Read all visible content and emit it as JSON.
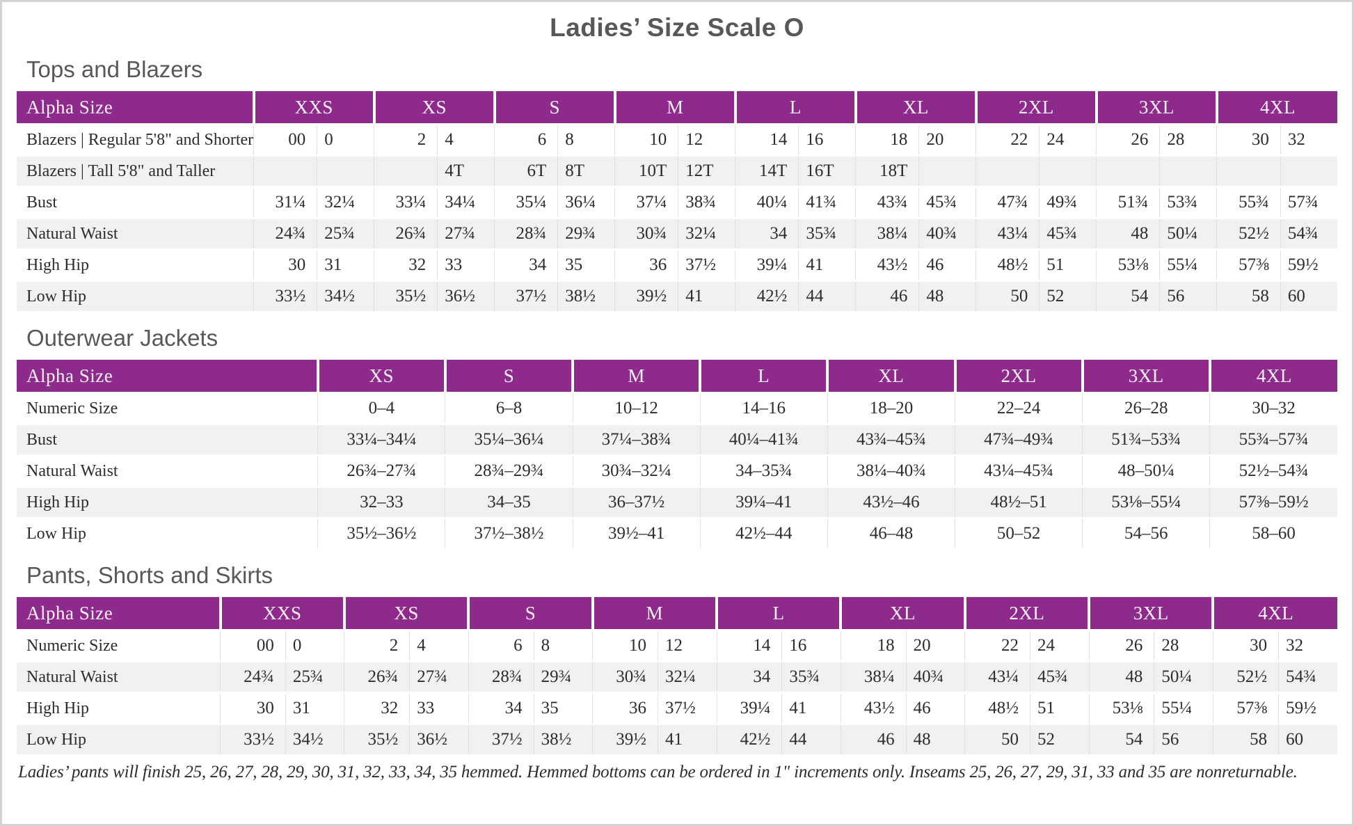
{
  "page_title": "Ladies’ Size Scale O",
  "colors": {
    "header_purple": "#8e2a8c",
    "row_stripe": "#f2f1ef",
    "heading_gray": "#58585a"
  },
  "sections": [
    {
      "heading": "Tops and Blazers",
      "layout": "paired",
      "corner_label": "Alpha Size",
      "columns": [
        "XXS",
        "XS",
        "S",
        "M",
        "L",
        "XL",
        "2XL",
        "3XL",
        "4XL"
      ],
      "rows": [
        {
          "label": "Blazers | Regular 5'8\" and Shorter",
          "cells": [
            "00",
            "0",
            "2",
            "4",
            "6",
            "8",
            "10",
            "12",
            "14",
            "16",
            "18",
            "20",
            "22",
            "24",
            "26",
            "28",
            "30",
            "32"
          ]
        },
        {
          "label": "Blazers | Tall 5'8\" and Taller",
          "cells": [
            "",
            "",
            "",
            "4T",
            "6T",
            "8T",
            "10T",
            "12T",
            "14T",
            "16T",
            "18T",
            "",
            "",
            "",
            "",
            "",
            "",
            ""
          ]
        },
        {
          "label": "Bust",
          "cells": [
            "31¼",
            "32¼",
            "33¼",
            "34¼",
            "35¼",
            "36¼",
            "37¼",
            "38¾",
            "40¼",
            "41¾",
            "43¾",
            "45¾",
            "47¾",
            "49¾",
            "51¾",
            "53¾",
            "55¾",
            "57¾"
          ]
        },
        {
          "label": "Natural Waist",
          "cells": [
            "24¾",
            "25¾",
            "26¾",
            "27¾",
            "28¾",
            "29¾",
            "30¾",
            "32¼",
            "34",
            "35¾",
            "38¼",
            "40¾",
            "43¼",
            "45¾",
            "48",
            "50¼",
            "52½",
            "54¾"
          ]
        },
        {
          "label": "High Hip",
          "cells": [
            "30",
            "31",
            "32",
            "33",
            "34",
            "35",
            "36",
            "37½",
            "39¼",
            "41",
            "43½",
            "46",
            "48½",
            "51",
            "53⅛",
            "55¼",
            "57⅜",
            "59½"
          ]
        },
        {
          "label": "Low Hip",
          "cells": [
            "33½",
            "34½",
            "35½",
            "36½",
            "37½",
            "38½",
            "39½",
            "41",
            "42½",
            "44",
            "46",
            "48",
            "50",
            "52",
            "54",
            "56",
            "58",
            "60"
          ]
        }
      ]
    },
    {
      "heading": "Outerwear Jackets",
      "layout": "single",
      "corner_label": "Alpha Size",
      "columns": [
        "XS",
        "S",
        "M",
        "L",
        "XL",
        "2XL",
        "3XL",
        "4XL"
      ],
      "rows": [
        {
          "label": "Numeric Size",
          "cells": [
            "0–4",
            "6–8",
            "10–12",
            "14–16",
            "18–20",
            "22–24",
            "26–28",
            "30–32"
          ]
        },
        {
          "label": "Bust",
          "cells": [
            "33¼–34¼",
            "35¼–36¼",
            "37¼–38¾",
            "40¼–41¾",
            "43¾–45¾",
            "47¾–49¾",
            "51¾–53¾",
            "55¾–57¾"
          ]
        },
        {
          "label": "Natural Waist",
          "cells": [
            "26¾–27¾",
            "28¾–29¾",
            "30¾–32¼",
            "34–35¾",
            "38¼–40¾",
            "43¼–45¾",
            "48–50¼",
            "52½–54¾"
          ]
        },
        {
          "label": "High Hip",
          "cells": [
            "32–33",
            "34–35",
            "36–37½",
            "39¼–41",
            "43½–46",
            "48½–51",
            "53⅛–55¼",
            "57⅜–59½"
          ]
        },
        {
          "label": "Low Hip",
          "cells": [
            "35½–36½",
            "37½–38½",
            "39½–41",
            "42½–44",
            "46–48",
            "50–52",
            "54–56",
            "58–60"
          ]
        }
      ]
    },
    {
      "heading": "Pants, Shorts and Skirts",
      "layout": "paired",
      "corner_label": "Alpha Size",
      "columns": [
        "XXS",
        "XS",
        "S",
        "M",
        "L",
        "XL",
        "2XL",
        "3XL",
        "4XL"
      ],
      "rows": [
        {
          "label": "Numeric Size",
          "cells": [
            "00",
            "0",
            "2",
            "4",
            "6",
            "8",
            "10",
            "12",
            "14",
            "16",
            "18",
            "20",
            "22",
            "24",
            "26",
            "28",
            "30",
            "32"
          ]
        },
        {
          "label": "Natural Waist",
          "cells": [
            "24¾",
            "25¾",
            "26¾",
            "27¾",
            "28¾",
            "29¾",
            "30¾",
            "32¼",
            "34",
            "35¾",
            "38¼",
            "40¾",
            "43¼",
            "45¾",
            "48",
            "50¼",
            "52½",
            "54¾"
          ]
        },
        {
          "label": "High Hip",
          "cells": [
            "30",
            "31",
            "32",
            "33",
            "34",
            "35",
            "36",
            "37½",
            "39¼",
            "41",
            "43½",
            "46",
            "48½",
            "51",
            "53⅛",
            "55¼",
            "57⅜",
            "59½"
          ]
        },
        {
          "label": "Low Hip",
          "cells": [
            "33½",
            "34½",
            "35½",
            "36½",
            "37½",
            "38½",
            "39½",
            "41",
            "42½",
            "44",
            "46",
            "48",
            "50",
            "52",
            "54",
            "56",
            "58",
            "60"
          ]
        }
      ]
    }
  ],
  "footnote": "Ladies’ pants will finish 25, 26, 27, 28, 29, 30, 31, 32, 33, 34, 35 hemmed. Hemmed bottoms can be ordered in 1\" increments only. Inseams 25, 26, 27, 29, 31, 33 and 35 are nonreturnable."
}
